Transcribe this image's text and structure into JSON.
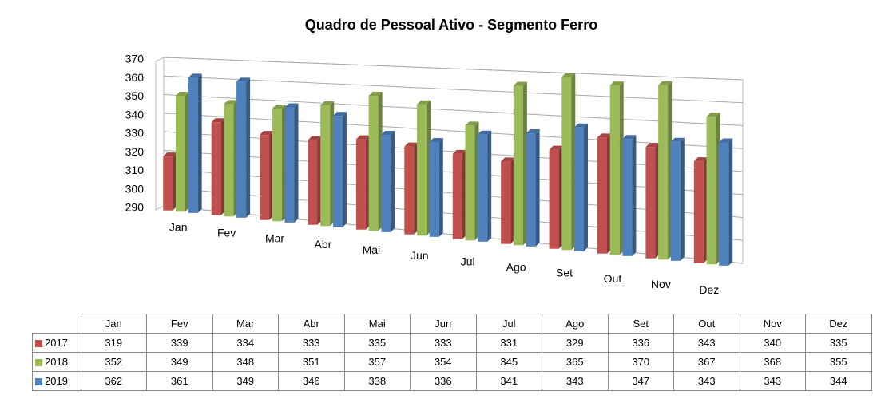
{
  "chart_data": {
    "type": "bar3d",
    "title": "Quadro de Pessoal Ativo - Segmento Ferro",
    "categories": [
      "Jan",
      "Fev",
      "Mar",
      "Abr",
      "Mai",
      "Jun",
      "Jul",
      "Ago",
      "Set",
      "Out",
      "Nov",
      "Dez"
    ],
    "series": [
      {
        "name": "2017",
        "color": "#c0504d",
        "values": [
          319,
          339,
          334,
          333,
          335,
          333,
          331,
          329,
          336,
          343,
          340,
          335
        ]
      },
      {
        "name": "2018",
        "color": "#9bbb59",
        "values": [
          352,
          349,
          348,
          351,
          357,
          354,
          345,
          365,
          370,
          367,
          368,
          355
        ]
      },
      {
        "name": "2019",
        "color": "#4f81bd",
        "values": [
          362,
          361,
          349,
          346,
          338,
          336,
          341,
          343,
          347,
          343,
          343,
          344
        ]
      }
    ],
    "ylim": [
      290,
      370
    ],
    "yticks": [
      290,
      300,
      310,
      320,
      330,
      340,
      350,
      360,
      370
    ],
    "grid": true,
    "data_table": true
  }
}
